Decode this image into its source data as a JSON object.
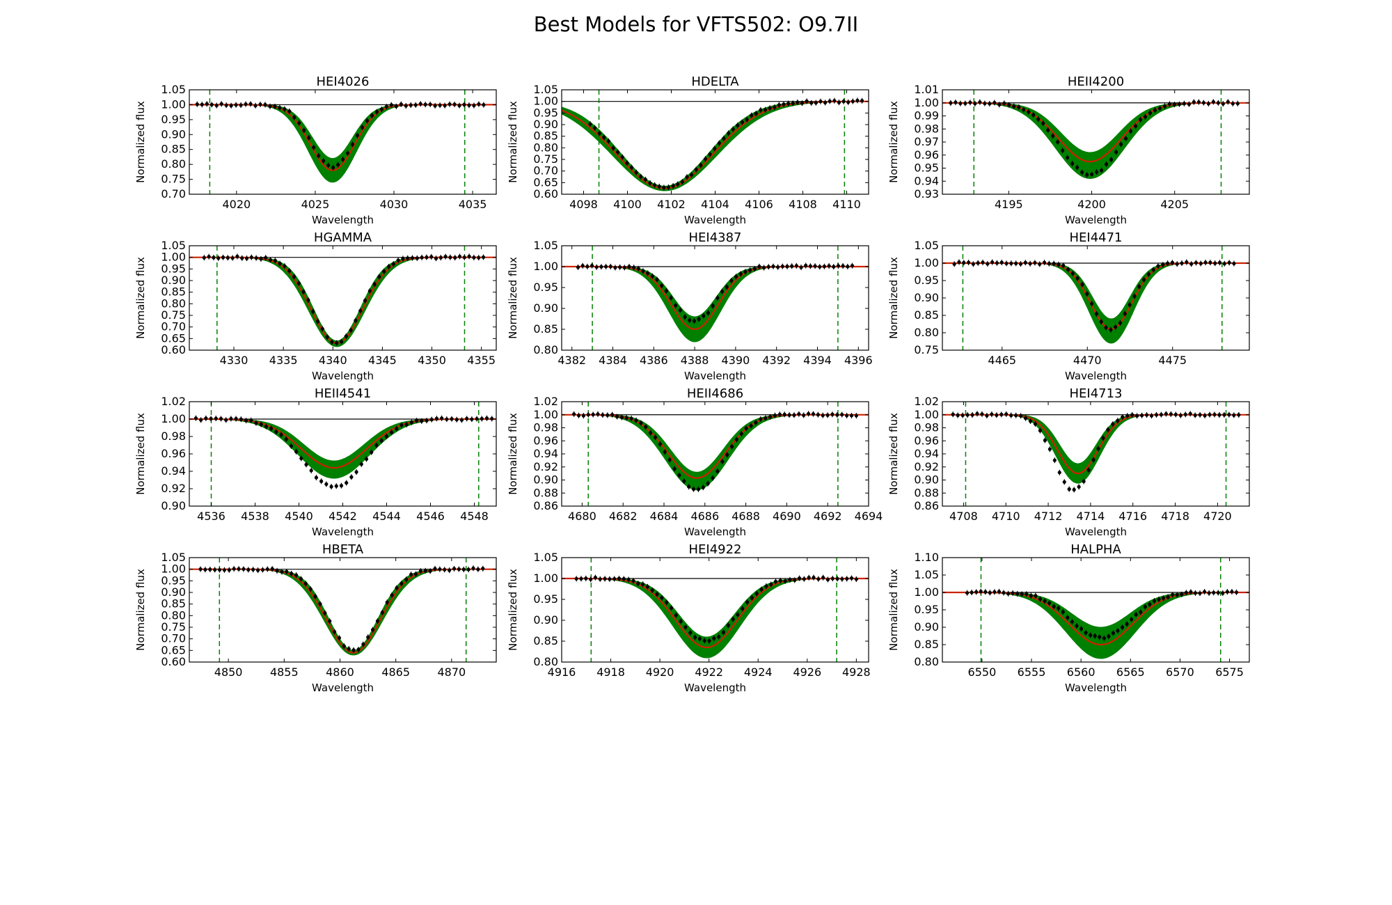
{
  "figure": {
    "title": "Best Models for VFTS502: O9.7II",
    "xlabel": "Wavelength",
    "ylabel": "Normalized flux",
    "colors": {
      "model_band": "#008000",
      "best_fit": "#cc2200",
      "data_points": "#000000",
      "continuum": "#000000",
      "window_lines": "#008000"
    }
  },
  "chart_data": [
    {
      "type": "line",
      "title": "HEI4026",
      "xlim": [
        4017,
        4036.5
      ],
      "ylim": [
        0.7,
        1.05
      ],
      "xticks": [
        4020,
        4025,
        4030,
        4035
      ],
      "xtick_labels": [
        "4020",
        "4025",
        "4030",
        "4035"
      ],
      "yticks": [
        0.7,
        0.75,
        0.8,
        0.85,
        0.9,
        0.95,
        1.0,
        1.05
      ],
      "ytick_labels": [
        "0.70",
        "0.75",
        "0.80",
        "0.85",
        "0.90",
        "0.95",
        "1.00",
        "1.05"
      ],
      "fit_window": [
        4018.3,
        4034.5
      ],
      "line_center": 4026.1,
      "line_width": 1.4,
      "depth_fit": 0.22,
      "depth_low": 0.26,
      "depth_high": 0.18,
      "data_x_range": [
        4017.5,
        4035.7
      ],
      "data_depth": 0.21,
      "data_shift": 0.0
    },
    {
      "type": "line",
      "title": "HDELTA",
      "xlim": [
        4097,
        4111
      ],
      "ylim": [
        0.6,
        1.05
      ],
      "xticks": [
        4098,
        4100,
        4102,
        4104,
        4106,
        4108,
        4110
      ],
      "xtick_labels": [
        "4098",
        "4100",
        "4102",
        "4104",
        "4106",
        "4108",
        "4110"
      ],
      "yticks": [
        0.6,
        0.65,
        0.7,
        0.75,
        0.8,
        0.85,
        0.9,
        0.95,
        1.0,
        1.05
      ],
      "ytick_labels": [
        "0.60",
        "0.65",
        "0.70",
        "0.75",
        "0.80",
        "0.85",
        "0.90",
        "0.95",
        "1.00",
        "1.05"
      ],
      "fit_window": [
        4098.7,
        4109.9
      ],
      "line_center": 4101.7,
      "line_width": 2.2,
      "depth_fit": 0.375,
      "depth_low": 0.385,
      "depth_high": 0.365,
      "data_x_range": [
        4098.3,
        4110.7
      ],
      "data_depth": 0.37,
      "data_shift": 0.0
    },
    {
      "type": "line",
      "title": "HEII4200",
      "xlim": [
        4191,
        4209.5
      ],
      "ylim": [
        0.93,
        1.01
      ],
      "xticks": [
        4195,
        4200,
        4205
      ],
      "xtick_labels": [
        "4195",
        "4200",
        "4205"
      ],
      "yticks": [
        0.93,
        0.94,
        0.95,
        0.96,
        0.97,
        0.98,
        0.99,
        1.0,
        1.01
      ],
      "ytick_labels": [
        "0.93",
        "0.94",
        "0.95",
        "0.96",
        "0.97",
        "0.98",
        "0.99",
        "1.00",
        "1.01"
      ],
      "fit_window": [
        4192.9,
        4207.8
      ],
      "line_center": 4199.9,
      "line_width": 1.9,
      "depth_fit": 0.045,
      "depth_low": 0.058,
      "depth_high": 0.038,
      "data_x_range": [
        4191.5,
        4208.8
      ],
      "data_depth": 0.055,
      "data_shift": 0.0
    },
    {
      "type": "line",
      "title": "HGAMMA",
      "xlim": [
        4325.5,
        4356.5
      ],
      "ylim": [
        0.6,
        1.05
      ],
      "xticks": [
        4330,
        4335,
        4340,
        4345,
        4350,
        4355
      ],
      "xtick_labels": [
        "4330",
        "4335",
        "4340",
        "4345",
        "4350",
        "4355"
      ],
      "yticks": [
        0.6,
        0.65,
        0.7,
        0.75,
        0.8,
        0.85,
        0.9,
        0.95,
        1.0,
        1.05
      ],
      "ytick_labels": [
        "0.60",
        "0.65",
        "0.70",
        "0.75",
        "0.80",
        "0.85",
        "0.90",
        "0.95",
        "1.00",
        "1.05"
      ],
      "fit_window": [
        4328.3,
        4353.3
      ],
      "line_center": 4340.4,
      "line_width": 2.6,
      "depth_fit": 0.37,
      "depth_low": 0.385,
      "depth_high": 0.36,
      "data_x_range": [
        4327.0,
        4355.2
      ],
      "data_depth": 0.37,
      "data_shift": 0.0
    },
    {
      "type": "line",
      "title": "HEI4387",
      "xlim": [
        4381.5,
        4396.5
      ],
      "ylim": [
        0.8,
        1.05
      ],
      "xticks": [
        4382,
        4384,
        4386,
        4388,
        4390,
        4392,
        4394,
        4396
      ],
      "xtick_labels": [
        "4382",
        "4384",
        "4386",
        "4388",
        "4390",
        "4392",
        "4394",
        "4396"
      ],
      "yticks": [
        0.8,
        0.85,
        0.9,
        0.95,
        1.0,
        1.05
      ],
      "ytick_labels": [
        "0.80",
        "0.85",
        "0.90",
        "0.95",
        "1.00",
        "1.05"
      ],
      "fit_window": [
        4383.0,
        4395.0
      ],
      "line_center": 4388.0,
      "line_width": 1.15,
      "depth_fit": 0.15,
      "depth_low": 0.18,
      "depth_high": 0.12,
      "data_x_range": [
        4382.3,
        4395.7
      ],
      "data_depth": 0.13,
      "data_shift": 0.0
    },
    {
      "type": "line",
      "title": "HEI4471",
      "xlim": [
        4461.5,
        4479.5
      ],
      "ylim": [
        0.75,
        1.05
      ],
      "xticks": [
        4465,
        4470,
        4475
      ],
      "xtick_labels": [
        "4465",
        "4470",
        "4475"
      ],
      "yticks": [
        0.75,
        0.8,
        0.85,
        0.9,
        0.95,
        1.0,
        1.05
      ],
      "ytick_labels": [
        "0.75",
        "0.80",
        "0.85",
        "0.90",
        "0.95",
        "1.00",
        "1.05"
      ],
      "fit_window": [
        4462.7,
        4477.9
      ],
      "line_center": 4471.4,
      "line_width": 1.2,
      "depth_fit": 0.19,
      "depth_low": 0.23,
      "depth_high": 0.16,
      "data_x_range": [
        4462.2,
        4478.6
      ],
      "data_depth": 0.19,
      "data_shift": 0.0
    },
    {
      "type": "line",
      "title": "HEII4541",
      "xlim": [
        4535,
        4549
      ],
      "ylim": [
        0.9,
        1.02
      ],
      "xticks": [
        4536,
        4538,
        4540,
        4542,
        4544,
        4546,
        4548
      ],
      "xtick_labels": [
        "4536",
        "4538",
        "4540",
        "4542",
        "4544",
        "4546",
        "4548"
      ],
      "yticks": [
        0.9,
        0.92,
        0.94,
        0.96,
        0.98,
        1.0,
        1.02
      ],
      "ytick_labels": [
        "0.90",
        "0.92",
        "0.94",
        "0.96",
        "0.98",
        "1.00",
        "1.02"
      ],
      "fit_window": [
        4536.0,
        4548.2
      ],
      "line_center": 4541.6,
      "line_width": 1.5,
      "depth_fit": 0.056,
      "depth_low": 0.068,
      "depth_high": 0.048,
      "data_x_range": [
        4535.3,
        4548.8
      ],
      "data_depth": 0.078,
      "data_shift": 0.0
    },
    {
      "type": "line",
      "title": "HEII4686",
      "xlim": [
        4679,
        4694
      ],
      "ylim": [
        0.86,
        1.02
      ],
      "xticks": [
        4680,
        4682,
        4684,
        4686,
        4688,
        4690,
        4692,
        4694
      ],
      "xtick_labels": [
        "4680",
        "4682",
        "4684",
        "4686",
        "4688",
        "4690",
        "4692",
        "4694"
      ],
      "yticks": [
        0.86,
        0.88,
        0.9,
        0.92,
        0.94,
        0.96,
        0.98,
        1.0,
        1.02
      ],
      "ytick_labels": [
        "0.86",
        "0.88",
        "0.90",
        "0.92",
        "0.94",
        "0.96",
        "0.98",
        "1.00",
        "1.02"
      ],
      "fit_window": [
        4680.3,
        4692.5
      ],
      "line_center": 4685.6,
      "line_width": 1.4,
      "depth_fit": 0.097,
      "depth_low": 0.115,
      "depth_high": 0.088,
      "data_x_range": [
        4679.6,
        4693.4
      ],
      "data_depth": 0.114,
      "data_shift": 0.0
    },
    {
      "type": "line",
      "title": "HEI4713",
      "xlim": [
        4707,
        4721.5
      ],
      "ylim": [
        0.86,
        1.02
      ],
      "xticks": [
        4708,
        4710,
        4712,
        4714,
        4716,
        4718,
        4720
      ],
      "xtick_labels": [
        "4708",
        "4710",
        "4712",
        "4714",
        "4716",
        "4718",
        "4720"
      ],
      "yticks": [
        0.86,
        0.88,
        0.9,
        0.92,
        0.94,
        0.96,
        0.98,
        1.0,
        1.02
      ],
      "ytick_labels": [
        "0.86",
        "0.88",
        "0.90",
        "0.92",
        "0.94",
        "0.96",
        "0.98",
        "1.00",
        "1.02"
      ],
      "fit_window": [
        4708.1,
        4720.4
      ],
      "line_center": 4713.4,
      "line_width": 0.95,
      "depth_fit": 0.09,
      "depth_low": 0.105,
      "depth_high": 0.075,
      "data_x_range": [
        4707.5,
        4721.0
      ],
      "data_depth": 0.116,
      "data_shift": -0.2
    },
    {
      "type": "line",
      "title": "HBETA",
      "xlim": [
        4846.5,
        4874
      ],
      "ylim": [
        0.6,
        1.05
      ],
      "xticks": [
        4850,
        4855,
        4860,
        4865,
        4870
      ],
      "xtick_labels": [
        "4850",
        "4855",
        "4860",
        "4865",
        "4870"
      ],
      "yticks": [
        0.6,
        0.65,
        0.7,
        0.75,
        0.8,
        0.85,
        0.9,
        0.95,
        1.0,
        1.05
      ],
      "ytick_labels": [
        "0.60",
        "0.65",
        "0.70",
        "0.75",
        "0.80",
        "0.85",
        "0.90",
        "0.95",
        "1.00",
        "1.05"
      ],
      "fit_window": [
        4849.2,
        4871.3
      ],
      "line_center": 4861.2,
      "line_width": 2.4,
      "depth_fit": 0.36,
      "depth_low": 0.37,
      "depth_high": 0.35,
      "data_x_range": [
        4847.5,
        4872.8
      ],
      "data_depth": 0.35,
      "data_shift": 0.0
    },
    {
      "type": "line",
      "title": "HEI4922",
      "xlim": [
        4916,
        4928.5
      ],
      "ylim": [
        0.8,
        1.05
      ],
      "xticks": [
        4916,
        4918,
        4920,
        4922,
        4924,
        4926,
        4928
      ],
      "xtick_labels": [
        "4916",
        "4918",
        "4920",
        "4922",
        "4924",
        "4926",
        "4928"
      ],
      "yticks": [
        0.8,
        0.85,
        0.9,
        0.95,
        1.0,
        1.05
      ],
      "ytick_labels": [
        "0.80",
        "0.85",
        "0.90",
        "0.95",
        "1.00",
        "1.05"
      ],
      "fit_window": [
        4917.2,
        4927.2
      ],
      "line_center": 4921.9,
      "line_width": 1.25,
      "depth_fit": 0.165,
      "depth_low": 0.19,
      "depth_high": 0.14,
      "data_x_range": [
        4916.6,
        4928.0
      ],
      "data_depth": 0.15,
      "data_shift": 0.0
    },
    {
      "type": "line",
      "title": "HALPHA",
      "xlim": [
        6546,
        6577
      ],
      "ylim": [
        0.8,
        1.1
      ],
      "xticks": [
        6550,
        6555,
        6560,
        6565,
        6570,
        6575
      ],
      "xtick_labels": [
        "6550",
        "6555",
        "6560",
        "6565",
        "6570",
        "6575"
      ],
      "yticks": [
        0.8,
        0.85,
        0.9,
        0.95,
        1.0,
        1.05,
        1.1
      ],
      "ytick_labels": [
        "0.80",
        "0.85",
        "0.90",
        "0.95",
        "1.00",
        "1.05",
        "1.10"
      ],
      "fit_window": [
        6549.9,
        6574.1
      ],
      "line_center": 6562.0,
      "line_width": 3.2,
      "depth_fit": 0.15,
      "depth_low": 0.19,
      "depth_high": 0.1,
      "data_x_range": [
        6548.5,
        6575.7
      ],
      "data_depth": 0.13,
      "data_shift": 0.0
    }
  ]
}
